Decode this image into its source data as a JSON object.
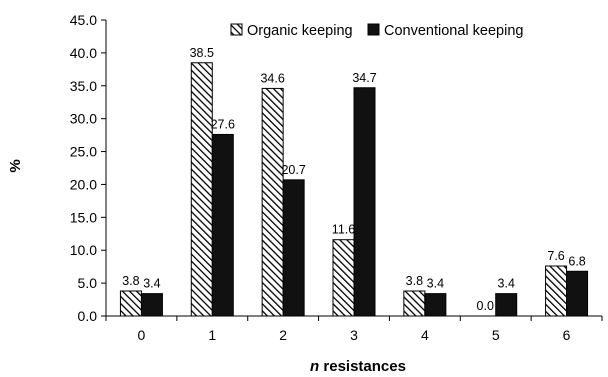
{
  "chart_data": {
    "type": "bar",
    "categories": [
      "0",
      "1",
      "2",
      "3",
      "4",
      "5",
      "6"
    ],
    "series": [
      {
        "name": "Organic keeping",
        "values": [
          3.8,
          38.5,
          34.6,
          11.6,
          3.8,
          0.0,
          7.6
        ],
        "labels": [
          "3.8",
          "38.5",
          "34.6",
          "11.6",
          "3.8",
          "0.0",
          "7.6"
        ],
        "pattern": "diagonal-hatch",
        "color": "#000000"
      },
      {
        "name": "Conventional keeping",
        "values": [
          3.4,
          27.6,
          20.7,
          34.7,
          3.4,
          3.4,
          6.8
        ],
        "labels": [
          "3.4",
          "27.6",
          "20.7",
          "34.7",
          "3.4",
          "3.4",
          "6.8"
        ],
        "pattern": "solid",
        "color": "#111111"
      }
    ],
    "xlabel_italic": "n",
    "xlabel_rest": " resistances",
    "ylabel": "%",
    "ylim": [
      0,
      45
    ],
    "yticks": [
      "0.0",
      "5.0",
      "10.0",
      "15.0",
      "20.0",
      "25.0",
      "30.0",
      "35.0",
      "40.0",
      "45.0"
    ],
    "grid": false,
    "legend_position": "top-right"
  }
}
